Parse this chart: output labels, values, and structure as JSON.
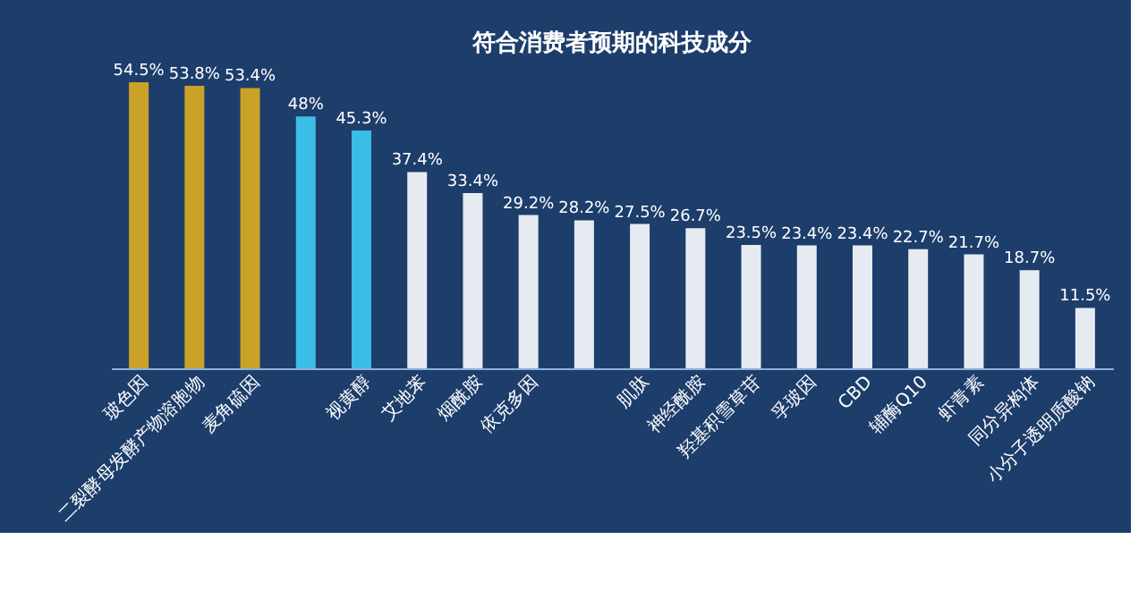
{
  "chart_data": {
    "type": "bar",
    "title": "符合消费者预期的科技成分",
    "categories": [
      "玻色因",
      "二裂酵母发酵产物溶胞物",
      "麦角硫因",
      null,
      "视黄醇",
      "艾地苯",
      "烟酰胺",
      "依克多因",
      null,
      "肌肽",
      "神经酰胺",
      "羟基积雪草苷",
      "孚玻因",
      "CBD",
      "辅酶Q10",
      "虾青素",
      "同分异构体",
      "小分子透明质酸钠"
    ],
    "values": [
      54.5,
      53.8,
      53.4,
      48,
      45.3,
      37.4,
      33.4,
      29.2,
      28.2,
      27.5,
      26.7,
      23.5,
      23.4,
      23.4,
      22.7,
      21.7,
      18.7,
      11.5
    ],
    "colors": [
      "#c9a227",
      "#c9a227",
      "#c9a227",
      "#3bbde6",
      "#3bbde6",
      "#e6ebf2",
      "#e6ebf2",
      "#e6ebf2",
      "#e6ebf2",
      "#e6ebf2",
      "#e6ebf2",
      "#e6ebf2",
      "#e6ebf2",
      "#e6ebf2",
      "#e6ebf2",
      "#e6ebf2",
      "#e6ebf2",
      "#e6ebf2"
    ],
    "value_labels": [
      "54.5%",
      "53.8%",
      "53.4%",
      "48%",
      "45.3%",
      "37.4%",
      "33.4%",
      "29.2%",
      "28.2%",
      "27.5%",
      "26.7%",
      "23.5%",
      "23.4%",
      "23.4%",
      "22.7%",
      "21.7%",
      "18.7%",
      "11.5%"
    ],
    "tick_labels": "x"
  }
}
